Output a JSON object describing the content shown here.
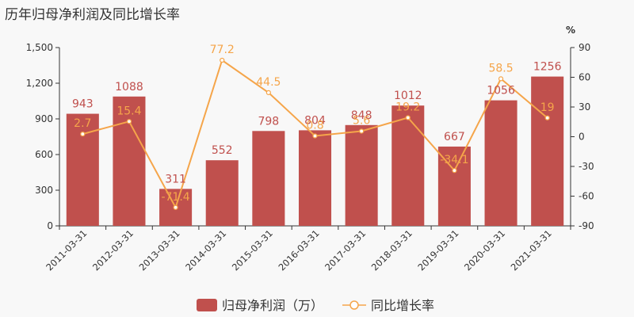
{
  "title": "历年归母净利润及同比增长率",
  "colors": {
    "bar": "#c0504d",
    "line": "#f5a54a",
    "axis": "#333333",
    "background": "#f8f8f8"
  },
  "chart_data": {
    "type": "bar",
    "categories": [
      "2011-03-31",
      "2012-03-31",
      "2013-03-31",
      "2014-03-31",
      "2015-03-31",
      "2016-03-31",
      "2017-03-31",
      "2018-03-31",
      "2019-03-31",
      "2020-03-31",
      "2021-03-31"
    ],
    "series": [
      {
        "name": "归母净利润（万）",
        "type": "bar",
        "axis": "left",
        "values": [
          943,
          1088,
          311,
          552,
          798,
          804,
          848,
          1012,
          667,
          1056,
          1256
        ]
      },
      {
        "name": "同比增长率",
        "type": "line",
        "axis": "right",
        "values": [
          2.7,
          15.4,
          -71.4,
          77.2,
          44.5,
          0.8,
          5.6,
          19.2,
          -34.1,
          58.5,
          19
        ]
      }
    ],
    "y_left": {
      "ylim": [
        0,
        1500
      ],
      "ticks": [
        0,
        300,
        600,
        900,
        1200,
        1500
      ],
      "tick_labels": [
        "0",
        "300",
        "600",
        "900",
        "1,200",
        "1,500"
      ]
    },
    "y_right": {
      "ylim": [
        -90,
        90
      ],
      "ticks": [
        -90,
        -60,
        -30,
        0,
        30,
        60,
        90
      ],
      "tick_labels": [
        "-90",
        "-60",
        "-30",
        "0",
        "30",
        "60",
        "90"
      ],
      "unit": "%"
    },
    "legend_position": "bottom",
    "grid": false
  }
}
